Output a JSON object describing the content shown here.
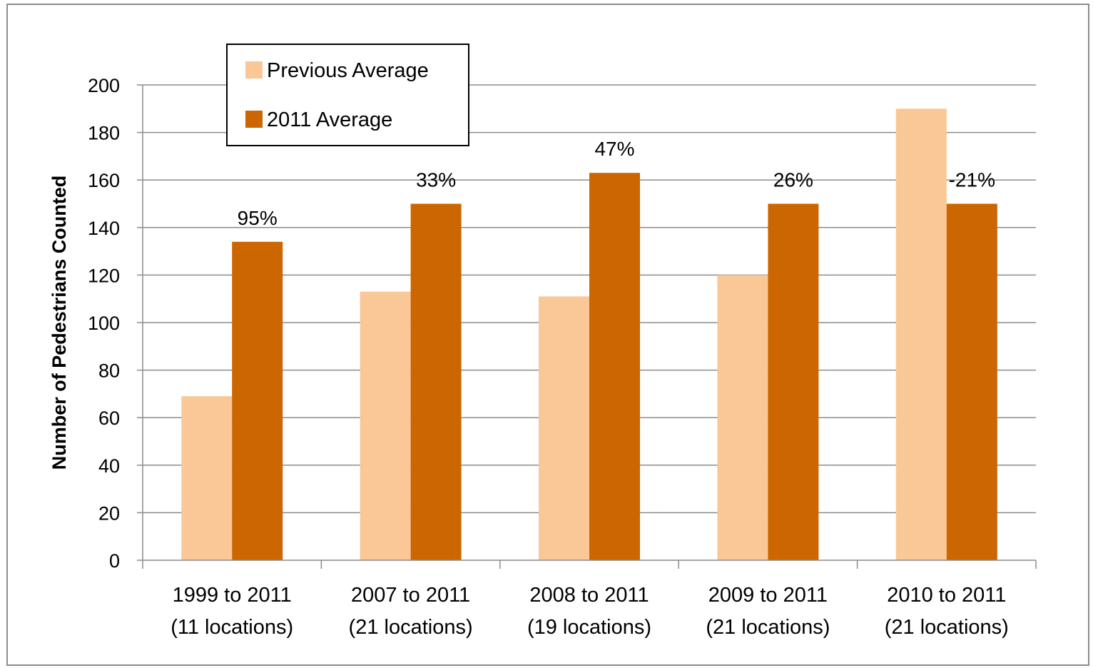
{
  "chart_data": {
    "type": "bar",
    "categories": [
      [
        "1999 to 2011",
        "(11 locations)"
      ],
      [
        "2007 to 2011",
        "(21 locations)"
      ],
      [
        "2008 to 2011",
        "(19 locations)"
      ],
      [
        "2009 to 2011",
        "(21 locations)"
      ],
      [
        "2010 to 2011",
        "(21 locations)"
      ]
    ],
    "series": [
      {
        "name": "Previous Average",
        "color": "#FAC896",
        "values": [
          69,
          113,
          111,
          120,
          190
        ]
      },
      {
        "name": "2011 Average",
        "color": "#CC6600",
        "values": [
          134,
          150,
          163,
          150,
          150
        ]
      }
    ],
    "data_labels": [
      "95%",
      "33%",
      "47%",
      "26%",
      "-21%"
    ],
    "ylabel": "Number of Pedestrians Counted",
    "xlabel": "",
    "ylim": [
      0,
      200
    ],
    "yticks": [
      0,
      20,
      40,
      60,
      80,
      100,
      120,
      140,
      160,
      180,
      200
    ],
    "grid": true,
    "legend_position": "top-left"
  }
}
